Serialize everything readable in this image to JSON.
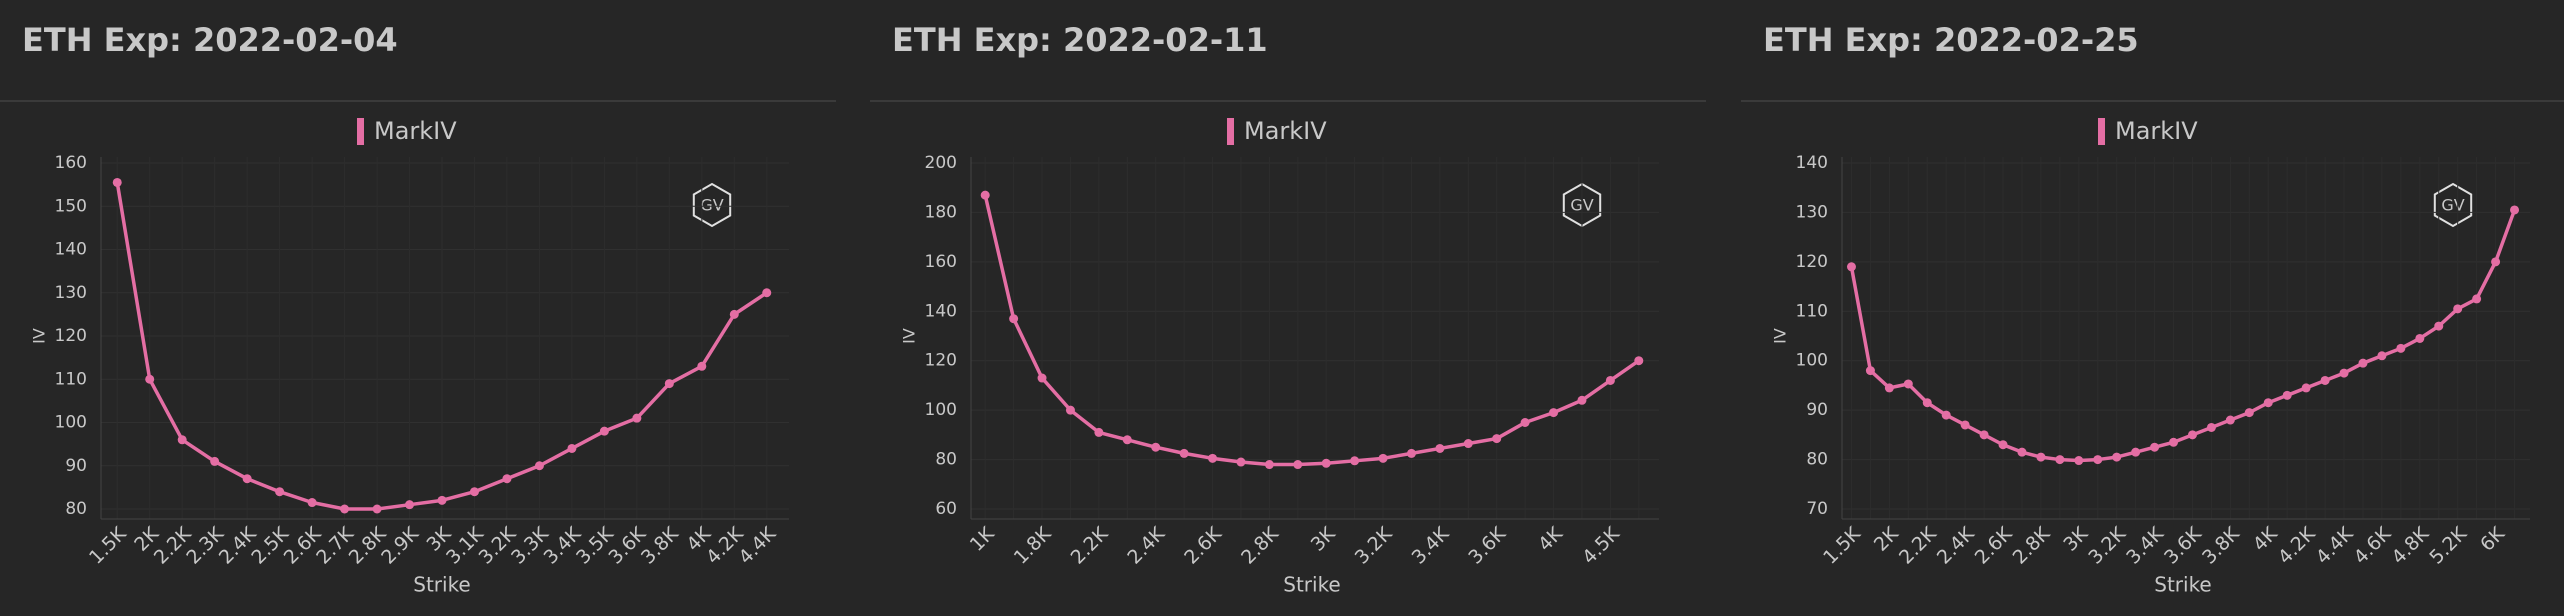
{
  "chart_data": [
    {
      "type": "line",
      "title": "ETH Exp: 2022-02-04",
      "x_label": "Strike",
      "y_label": "IV",
      "categories": [
        "1.5K",
        "2K",
        "2.2K",
        "2.3K",
        "2.4K",
        "2.5K",
        "2.6K",
        "2.7K",
        "2.8K",
        "2.9K",
        "3K",
        "3.1K",
        "3.2K",
        "3.3K",
        "3.4K",
        "3.5K",
        "3.6K",
        "3.8K",
        "4K",
        "4.2K",
        "4.4K"
      ],
      "series": [
        {
          "name": "MarkIV",
          "color": "#e46ea4",
          "values": [
            155.5,
            110,
            96,
            91,
            87,
            84,
            81.5,
            80,
            80,
            81,
            82,
            84,
            87,
            90,
            94,
            98,
            101,
            109,
            113,
            125,
            130
          ]
        }
      ],
      "ylim": [
        80,
        160
      ],
      "yticks": [
        80,
        90,
        100,
        110,
        120,
        130,
        140,
        150,
        160
      ],
      "grid": true
    },
    {
      "type": "line",
      "title": "ETH Exp: 2022-02-11",
      "x_label": "Strike",
      "y_label": "IV",
      "categories": [
        "1K",
        null,
        "1.8K",
        null,
        "2.2K",
        null,
        "2.4K",
        null,
        "2.6K",
        null,
        "2.8K",
        null,
        "3K",
        null,
        "3.2K",
        null,
        "3.4K",
        null,
        "3.6K",
        null,
        "4K",
        null,
        "4.5K",
        null
      ],
      "series": [
        {
          "name": "MarkIV",
          "color": "#e46ea4",
          "values": [
            187,
            137,
            113,
            100,
            91,
            88,
            85,
            82.5,
            80.5,
            79,
            78,
            78,
            78.5,
            79.5,
            80.5,
            82.5,
            84.5,
            86.5,
            88.5,
            95,
            99,
            104,
            112,
            120
          ]
        }
      ],
      "ylim": [
        60,
        200
      ],
      "yticks": [
        60,
        80,
        100,
        120,
        140,
        160,
        180,
        200
      ],
      "grid": true
    },
    {
      "type": "line",
      "title": "ETH Exp: 2022-02-25",
      "x_label": "Strike",
      "y_label": "IV",
      "categories": [
        "1.5K",
        null,
        "2K",
        null,
        "2.2K",
        null,
        "2.4K",
        null,
        "2.6K",
        null,
        "2.8K",
        null,
        "3K",
        null,
        "3.2K",
        null,
        "3.4K",
        null,
        "3.6K",
        null,
        "3.8K",
        null,
        "4K",
        null,
        "4.2K",
        null,
        "4.4K",
        null,
        "4.6K",
        null,
        "4.8K",
        null,
        "5.2K",
        null,
        "6K",
        null
      ],
      "series": [
        {
          "name": "MarkIV",
          "color": "#e46ea4",
          "values": [
            119,
            98,
            94.5,
            95.3,
            91.5,
            89,
            87,
            85,
            83,
            81.5,
            80.5,
            80,
            79.8,
            80,
            80.5,
            81.5,
            82.5,
            83.5,
            85,
            86.5,
            88,
            89.5,
            91.5,
            93,
            94.5,
            96,
            97.5,
            99.5,
            101,
            102.5,
            104.5,
            107,
            110.5,
            112.5,
            120,
            130.5
          ]
        }
      ],
      "ylim": [
        70,
        140
      ],
      "yticks": [
        70,
        80,
        90,
        100,
        110,
        120,
        130,
        140
      ],
      "grid": true
    }
  ]
}
